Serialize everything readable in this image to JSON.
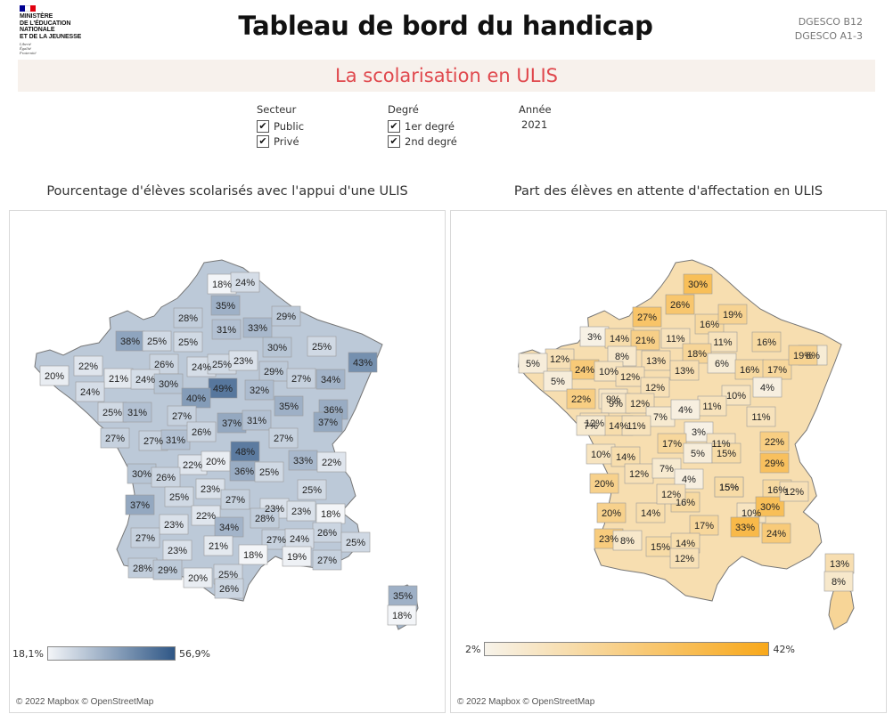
{
  "header": {
    "ministry": "MINISTÈRE\nDE L'ÉDUCATION\nNATIONALE\nET DE LA JEUNESSE",
    "motto": "Liberté\nÉgalité\nFraternité",
    "title": "Tableau de bord du handicap",
    "codes": [
      "DGESCO B12",
      "DGESCO A1-3"
    ],
    "subtitle": "La scolarisation en ULIS",
    "colors": {
      "subtitle": "#e0484d",
      "band": "#f7f1ec",
      "flag_blue": "#000091",
      "flag_red": "#e1000f"
    }
  },
  "filters": {
    "secteur": {
      "label": "Secteur",
      "options": [
        {
          "label": "Public",
          "checked": true
        },
        {
          "label": "Privé",
          "checked": true
        }
      ]
    },
    "degre": {
      "label": "Degré",
      "options": [
        {
          "label": "1er degré",
          "checked": true
        },
        {
          "label": "2nd degré",
          "checked": true
        }
      ]
    },
    "annee": {
      "label": "Année",
      "value": "2021"
    },
    "check_glyph": "✔"
  },
  "maps": [
    {
      "title": "Pourcentage d'élèves scolarisés avec l'appui d'une ULIS",
      "legend_min": "18,1%",
      "legend_max": "56,9%",
      "range": [
        18.1,
        56.9
      ],
      "color_low": "#f3f5f8",
      "color_high": "#2f5786",
      "copyright": "© 2022 Mapbox © OpenStreetMap",
      "labels": [
        [
          "18%",
          18
        ],
        [
          "24%",
          24
        ],
        [
          "35%",
          35
        ],
        [
          "28%",
          28
        ],
        [
          "33%",
          33
        ],
        [
          "29%",
          29
        ],
        [
          "38%",
          38
        ],
        [
          "25%",
          25
        ],
        [
          "25%",
          25
        ],
        [
          "31%",
          31
        ],
        [
          "30%",
          30
        ],
        [
          "25%",
          25
        ],
        [
          "43%",
          43
        ],
        [
          "20%",
          20
        ],
        [
          "22%",
          22
        ],
        [
          "26%",
          26
        ],
        [
          "24%",
          24
        ],
        [
          "25%",
          25
        ],
        [
          "23%",
          23
        ],
        [
          "29%",
          29
        ],
        [
          "27%",
          27
        ],
        [
          "34%",
          34
        ],
        [
          "21%",
          21
        ],
        [
          "24%",
          24
        ],
        [
          "30%",
          30
        ],
        [
          "49%",
          49
        ],
        [
          "32%",
          32
        ],
        [
          "35%",
          35
        ],
        [
          "24%",
          24
        ],
        [
          "40%",
          40
        ],
        [
          "36%",
          36
        ],
        [
          "25%",
          25
        ],
        [
          "31%",
          31
        ],
        [
          "27%",
          27
        ],
        [
          "37%",
          37
        ],
        [
          "31%",
          31
        ],
        [
          "37%",
          37
        ],
        [
          "27%",
          27
        ],
        [
          "27%",
          27
        ],
        [
          "31%",
          31
        ],
        [
          "26%",
          26
        ],
        [
          "48%",
          48
        ],
        [
          "27%",
          27
        ],
        [
          "22%",
          22
        ],
        [
          "20%",
          20
        ],
        [
          "33%",
          33
        ],
        [
          "22%",
          22
        ],
        [
          "30%",
          30
        ],
        [
          "26%",
          26
        ],
        [
          "36%",
          36
        ],
        [
          "25%",
          25
        ],
        [
          "25%",
          25
        ],
        [
          "23%",
          23
        ],
        [
          "25%",
          25
        ],
        [
          "27%",
          27
        ],
        [
          "23%",
          23
        ],
        [
          "23%",
          23
        ],
        [
          "18%",
          18
        ],
        [
          "37%",
          37
        ],
        [
          "22%",
          22
        ],
        [
          "28%",
          28
        ],
        [
          "23%",
          23
        ],
        [
          "34%",
          34
        ],
        [
          "26%",
          26
        ],
        [
          "27%",
          27
        ],
        [
          "21%",
          21
        ],
        [
          "27%",
          27
        ],
        [
          "24%",
          24
        ],
        [
          "25%",
          25
        ],
        [
          "23%",
          23
        ],
        [
          "18%",
          18
        ],
        [
          "19%",
          19
        ],
        [
          "27%",
          27
        ],
        [
          "28%",
          28
        ],
        [
          "29%",
          29
        ],
        [
          "20%",
          20
        ],
        [
          "25%",
          25
        ],
        [
          "26%",
          26
        ],
        [
          "35%",
          35
        ],
        [
          "18%",
          18
        ]
      ]
    },
    {
      "title": "Part des élèves en attente d'affectation en ULIS",
      "legend_min": "2%",
      "legend_max": "42%",
      "range": [
        2,
        42
      ],
      "color_low": "#f7f3ea",
      "color_high": "#f8a81a",
      "copyright": "© 2022 Mapbox © OpenStreetMap",
      "labels": [
        [
          "30%",
          30
        ],
        [
          "26%",
          26
        ],
        [
          "27%",
          27
        ],
        [
          "16%",
          16
        ],
        [
          "19%",
          19
        ],
        [
          "3%",
          3
        ],
        [
          "14%",
          14
        ],
        [
          "21%",
          21
        ],
        [
          "11%",
          11
        ],
        [
          "11%",
          11
        ],
        [
          "16%",
          16
        ],
        [
          "6%",
          6
        ],
        [
          "12%",
          12
        ],
        [
          "8%",
          8
        ],
        [
          "13%",
          13
        ],
        [
          "18%",
          18
        ],
        [
          "6%",
          6
        ],
        [
          "16%",
          16
        ],
        [
          "17%",
          17
        ],
        [
          "19%",
          19
        ],
        [
          "24%",
          24
        ],
        [
          "10%",
          10
        ],
        [
          "12%",
          12
        ],
        [
          "13%",
          13
        ],
        [
          "4%",
          4
        ],
        [
          "5%",
          5
        ],
        [
          "5%",
          5
        ],
        [
          "12%",
          12
        ],
        [
          "9%",
          9
        ],
        [
          "10%",
          10
        ],
        [
          "22%",
          22
        ],
        [
          "9%",
          9
        ],
        [
          "12%",
          12
        ],
        [
          "11%",
          11
        ],
        [
          "7%",
          7
        ],
        [
          "4%",
          4
        ],
        [
          "12%",
          12
        ],
        [
          "14%",
          14
        ],
        [
          "11%",
          11
        ],
        [
          "7%",
          7
        ],
        [
          "11%",
          11
        ],
        [
          "3%",
          3
        ],
        [
          "17%",
          17
        ],
        [
          "11%",
          11
        ],
        [
          "22%",
          22
        ],
        [
          "10%",
          10
        ],
        [
          "14%",
          14
        ],
        [
          "5%",
          5
        ],
        [
          "15%",
          15
        ],
        [
          "29%",
          29
        ],
        [
          "20%",
          20
        ],
        [
          "12%",
          12
        ],
        [
          "7%",
          7
        ],
        [
          "4%",
          4
        ],
        [
          "15%",
          15
        ],
        [
          "16%",
          16
        ],
        [
          "15%",
          15
        ],
        [
          "20%",
          20
        ],
        [
          "14%",
          14
        ],
        [
          "16%",
          16
        ],
        [
          "12%",
          12
        ],
        [
          "10%",
          10
        ],
        [
          "30%",
          30
        ],
        [
          "17%",
          17
        ],
        [
          "33%",
          33
        ],
        [
          "23%",
          23
        ],
        [
          "8%",
          8
        ],
        [
          "15%",
          15
        ],
        [
          "14%",
          14
        ],
        [
          "24%",
          24
        ],
        [
          "12%",
          12
        ],
        [
          "12%",
          12
        ],
        [
          "13%",
          13
        ],
        [
          "8%",
          8
        ]
      ]
    }
  ]
}
